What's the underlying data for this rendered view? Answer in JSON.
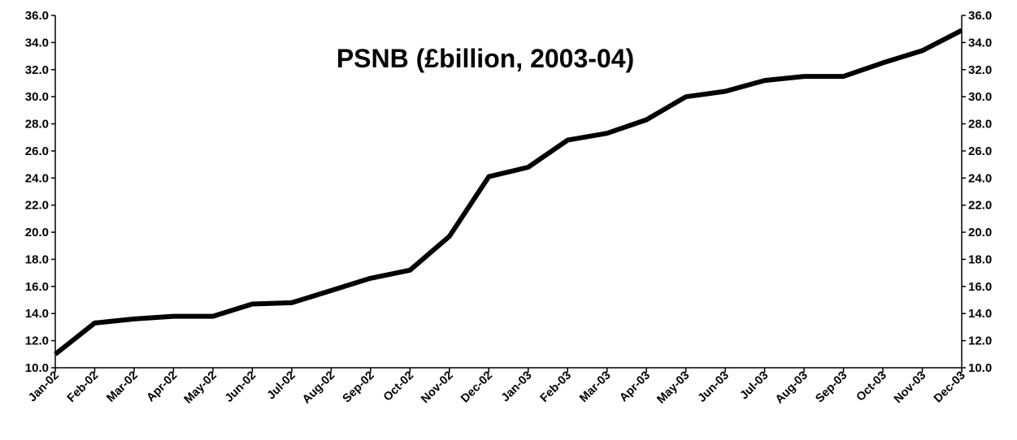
{
  "chart_data": {
    "type": "line",
    "title": "PSNB (£billion, 2003-04)",
    "xlabel": "",
    "ylabel": "",
    "categories": [
      "Jan-02",
      "Feb-02",
      "Mar-02",
      "Apr-02",
      "May-02",
      "Jun-02",
      "Jul-02",
      "Aug-02",
      "Sep-02",
      "Oct-02",
      "Nov-02",
      "Dec-02",
      "Jan-03",
      "Feb-03",
      "Mar-03",
      "Apr-03",
      "May-03",
      "Jun-03",
      "Jul-03",
      "Aug-03",
      "Sep-03",
      "Oct-03",
      "Nov-03",
      "Dec-03"
    ],
    "series": [
      {
        "values": [
          11.0,
          13.3,
          13.6,
          13.8,
          13.8,
          14.7,
          14.8,
          15.7,
          16.6,
          17.2,
          19.7,
          24.1,
          24.8,
          26.8,
          27.3,
          28.3,
          30.0,
          30.4,
          31.2,
          31.5,
          31.5,
          32.5,
          33.4,
          34.9
        ],
        "color": "#000000"
      }
    ],
    "ylim": [
      10.0,
      36.0
    ],
    "ytick_step": 2.0,
    "ytick_labels": [
      "10.0",
      "12.0",
      "14.0",
      "16.0",
      "18.0",
      "20.0",
      "22.0",
      "24.0",
      "26.0",
      "28.0",
      "30.0",
      "32.0",
      "34.0",
      "36.0"
    ],
    "y_axis_sides": [
      "left",
      "right"
    ],
    "grid": false,
    "legend": "none"
  }
}
